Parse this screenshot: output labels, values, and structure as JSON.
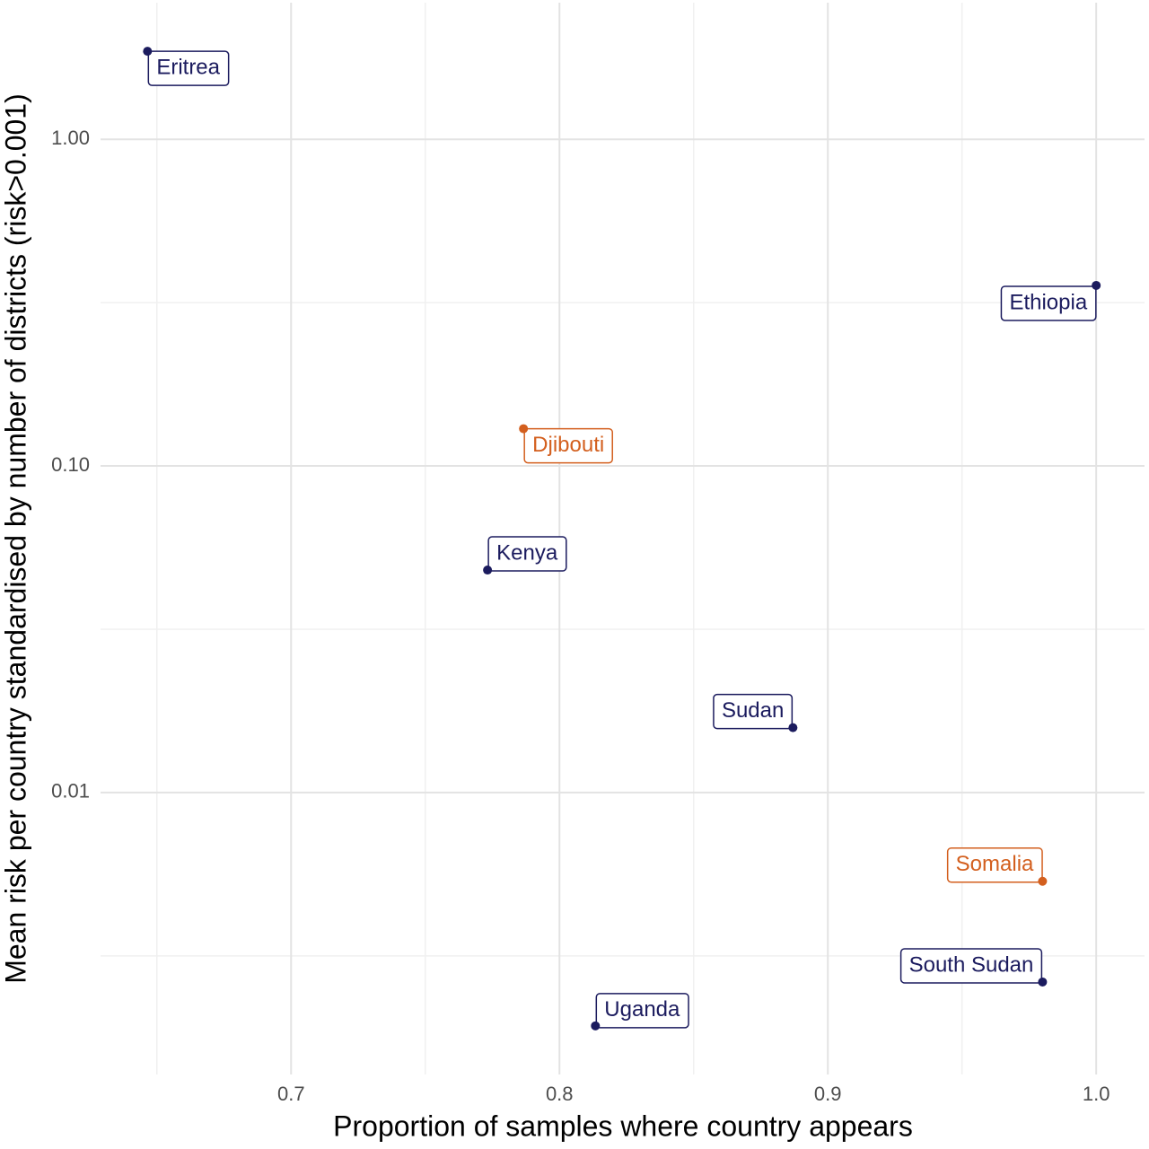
{
  "chart_data": {
    "type": "scatter",
    "x_label": "Proportion of samples where country appears",
    "y_label": "Mean risk per country standardised by number of districts (risk>0.001)",
    "y_log": true,
    "grid": true,
    "xlim": [
      0.629,
      1.018
    ],
    "xticks": [
      0.7,
      0.8,
      0.9,
      {
        "value": 1.0,
        "label": "1.0"
      }
    ],
    "ylim": [
      0.00137,
      2.62
    ],
    "yticks": [
      {
        "value": 1,
        "label": "1.00"
      },
      {
        "value": 0.1,
        "label": "0.10"
      },
      0.01
    ],
    "labels": [
      "Eritrea",
      "Ethiopia",
      "Djibouti",
      "Kenya",
      "Sudan",
      "Somalia",
      "South Sudan",
      "Uganda"
    ],
    "x": [
      0.6465,
      1.0,
      0.7866,
      0.7732,
      0.887,
      0.98,
      0.98,
      0.8134
    ],
    "values": [
      1.86,
      0.357,
      0.13,
      0.048,
      0.0158,
      0.00535,
      0.00263,
      0.00193
    ],
    "colors": [
      "#1b1b5e",
      "#1b1b5e",
      "#d35f1e",
      "#1b1b5e",
      "#1b1b5e",
      "#d35f1e",
      "#1b1b5e",
      "#1b1b5e"
    ]
  }
}
